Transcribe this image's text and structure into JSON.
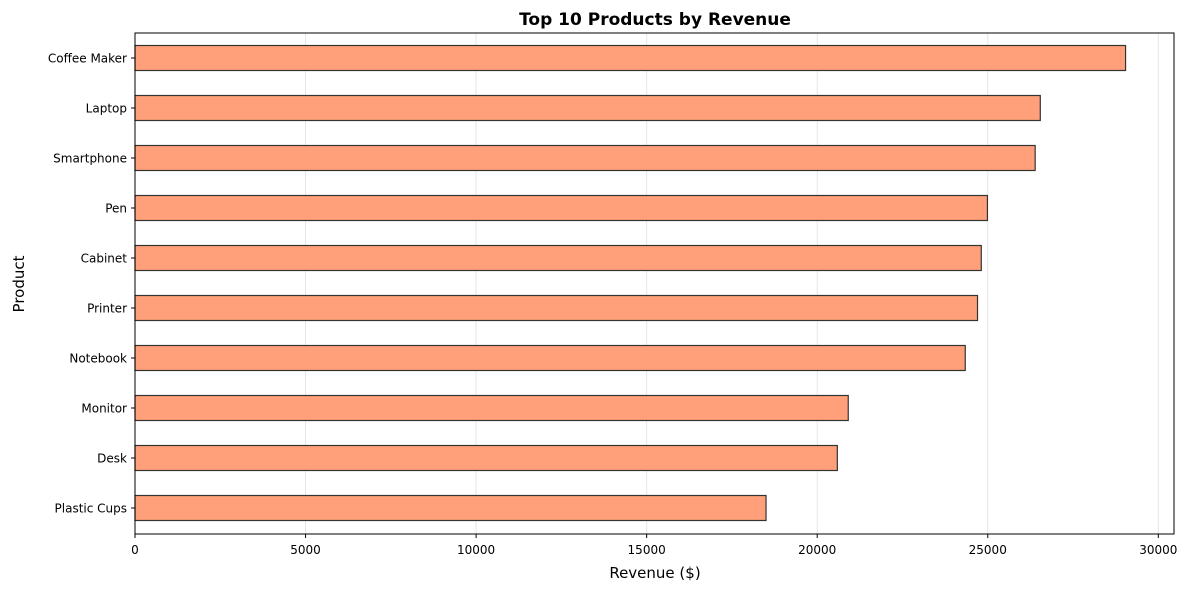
{
  "chart_data": {
    "type": "bar",
    "orientation": "horizontal",
    "title": "Top 10 Products by Revenue",
    "xlabel": "Revenue ($)",
    "ylabel": "Product",
    "categories": [
      "Coffee Maker",
      "Laptop",
      "Smartphone",
      "Pen",
      "Cabinet",
      "Printer",
      "Notebook",
      "Monitor",
      "Desk",
      "Plastic Cups"
    ],
    "values": [
      29040,
      26540,
      26390,
      24990,
      24810,
      24700,
      24340,
      20910,
      20590,
      18500
    ],
    "xlim": [
      0,
      30460
    ],
    "xticks": [
      0,
      5000,
      10000,
      15000,
      20000,
      25000,
      30000
    ],
    "grid": "x-axis vertical lines",
    "legend": "none",
    "colors": {
      "bar_fill": "#FFA07A",
      "bar_edge": "#333333",
      "grid": "#e5e5e5"
    }
  }
}
